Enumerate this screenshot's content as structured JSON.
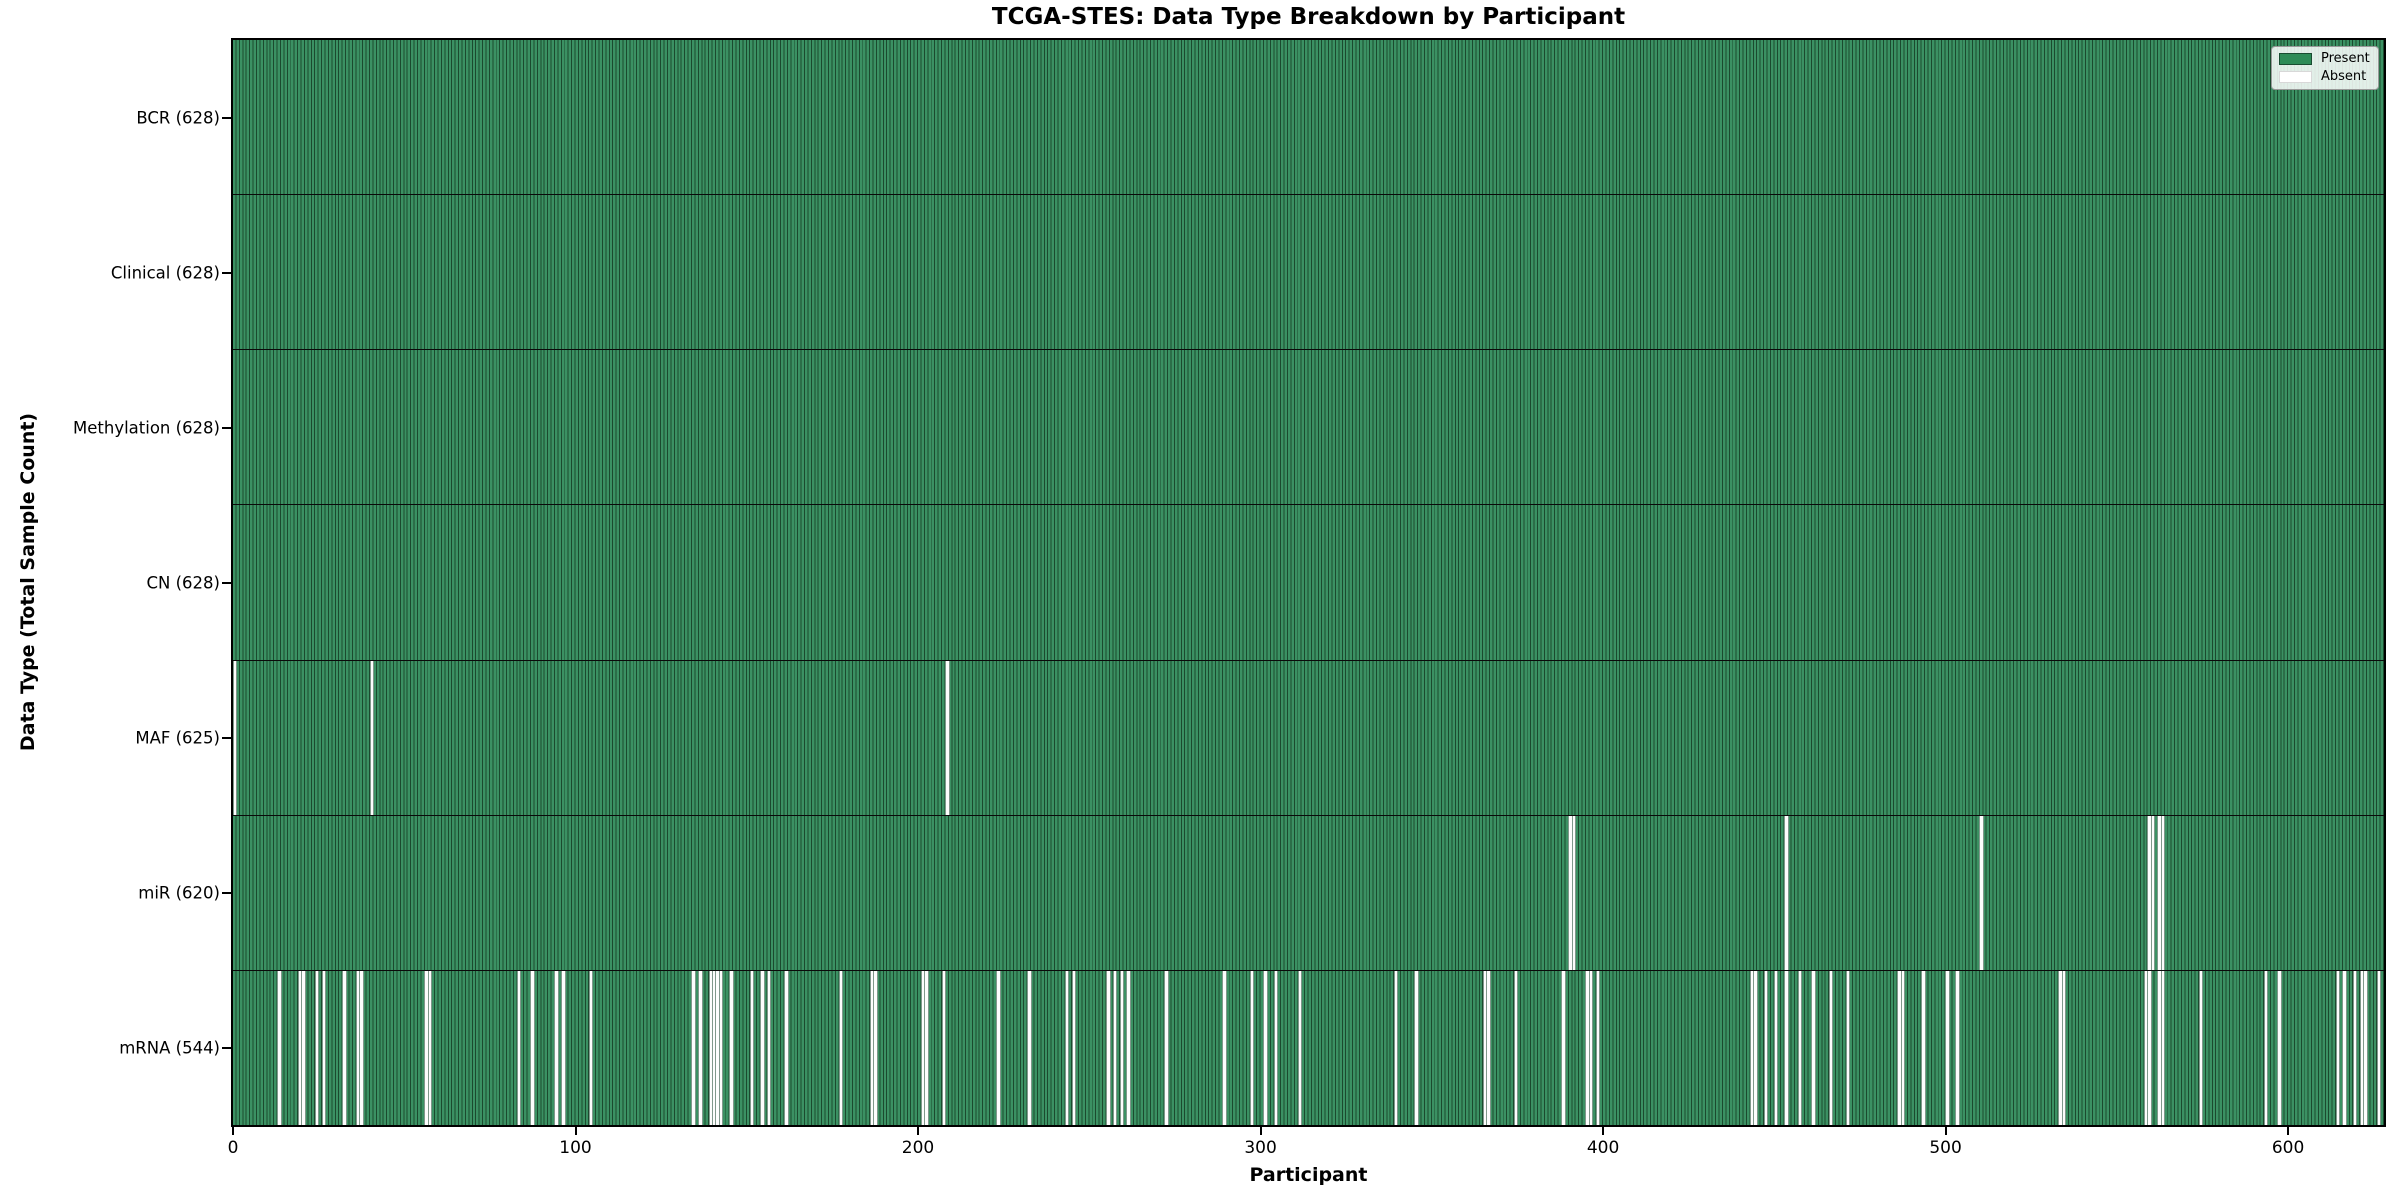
{
  "chart_data": {
    "type": "heatmap",
    "title": "TCGA-STES: Data Type Breakdown by Participant",
    "xlabel": "Participant",
    "ylabel": "Data Type (Total Sample Count)",
    "x_range": [
      0,
      628
    ],
    "x_ticks": [
      0,
      100,
      200,
      300,
      400,
      500,
      600
    ],
    "grid": false,
    "legend_position": "upper right",
    "legend": [
      {
        "label": "Present",
        "color": "#2E8B57"
      },
      {
        "label": "Absent",
        "color": "#FFFFFF"
      }
    ],
    "colors": {
      "present_fill": "#3b9163",
      "present_edge": "#1b4a2e",
      "absent_fill": "#ffffff",
      "legend_present": "#2E8B57",
      "row_divider": "#0a0a0a"
    },
    "rows": [
      {
        "label": "BCR (628)",
        "name": "BCR",
        "present_count": 628,
        "absent_participants": []
      },
      {
        "label": "Clinical (628)",
        "name": "Clinical",
        "present_count": 628,
        "absent_participants": []
      },
      {
        "label": "Methylation (628)",
        "name": "Methylation",
        "present_count": 628,
        "absent_participants": []
      },
      {
        "label": "CN (628)",
        "name": "CN",
        "present_count": 628,
        "absent_participants": []
      },
      {
        "label": "MAF (625)",
        "name": "MAF",
        "present_count": 625,
        "absent_participants": [
          0,
          40,
          208
        ]
      },
      {
        "label": "miR (620)",
        "name": "miR",
        "present_count": 620,
        "absent_participants": [
          390,
          391,
          453,
          510,
          559,
          560,
          562,
          563
        ]
      },
      {
        "label": "mRNA (544)",
        "name": "mRNA",
        "present_count": 544,
        "absent_participants": [
          13,
          19,
          20,
          24,
          26,
          32,
          36,
          37,
          56,
          57,
          83,
          87,
          94,
          96,
          104,
          134,
          136,
          139,
          140,
          141,
          142,
          145,
          151,
          154,
          156,
          161,
          177,
          186,
          187,
          201,
          202,
          207,
          223,
          232,
          243,
          245,
          255,
          257,
          259,
          261,
          272,
          289,
          297,
          301,
          304,
          311,
          339,
          345,
          365,
          366,
          374,
          388,
          395,
          396,
          398,
          443,
          444,
          447,
          450,
          453,
          457,
          461,
          466,
          471,
          486,
          487,
          493,
          500,
          503,
          533,
          534,
          558,
          559,
          562,
          563,
          574,
          593,
          597,
          614,
          616,
          619,
          621,
          622,
          626
        ]
      }
    ]
  }
}
